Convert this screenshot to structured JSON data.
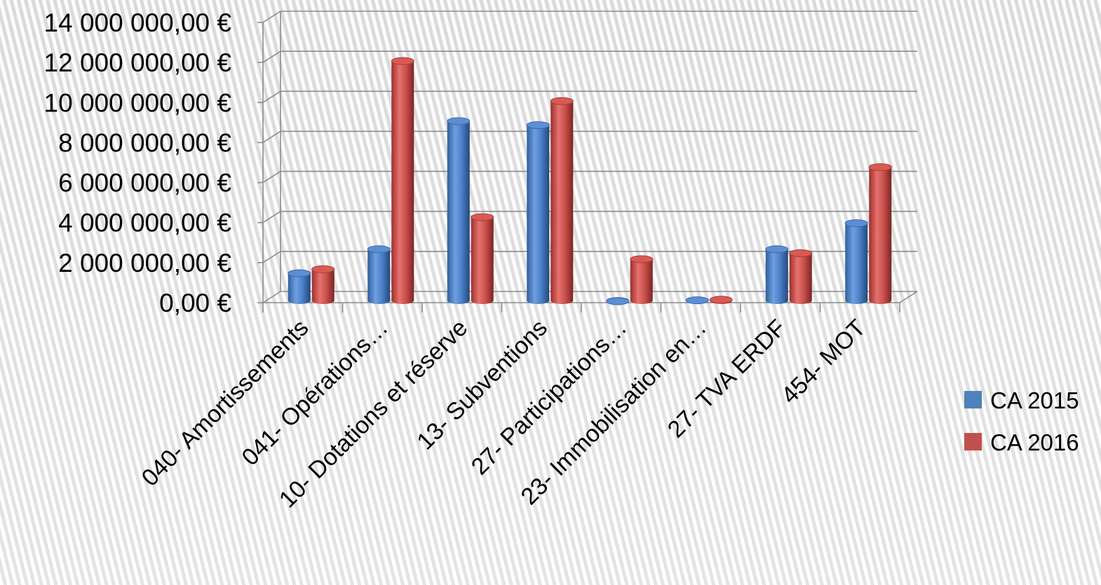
{
  "chart_data": {
    "type": "bar",
    "categories": [
      "040- Amortissements",
      "041- Opérations…",
      "10- Dotations et réserve",
      "13- Subventions",
      "27- Participations…",
      "23- Immobilisation en…",
      "27- TVA ERDF",
      "454- MOT"
    ],
    "series": [
      {
        "name": "CA 2015",
        "color": "#4f81bd",
        "values": [
          1400000,
          2600000,
          9000000,
          8800000,
          0,
          50000,
          2600000,
          3900000
        ]
      },
      {
        "name": "CA 2016",
        "color": "#c0504d",
        "values": [
          1600000,
          12000000,
          4200000,
          10000000,
          2100000,
          80000,
          2400000,
          6700000
        ]
      }
    ],
    "y_ticks": [
      "0,00 €",
      "2 000 000,00 €",
      "4 000 000,00 €",
      "6 000 000,00 €",
      "8 000 000,00 €",
      "10 000 000,00 €",
      "12 000 000,00 €",
      "14 000 000,00 €"
    ],
    "ylim": [
      0,
      14000000
    ],
    "grid": true,
    "legend": "right",
    "style": "3d-clustered-cylinder"
  }
}
